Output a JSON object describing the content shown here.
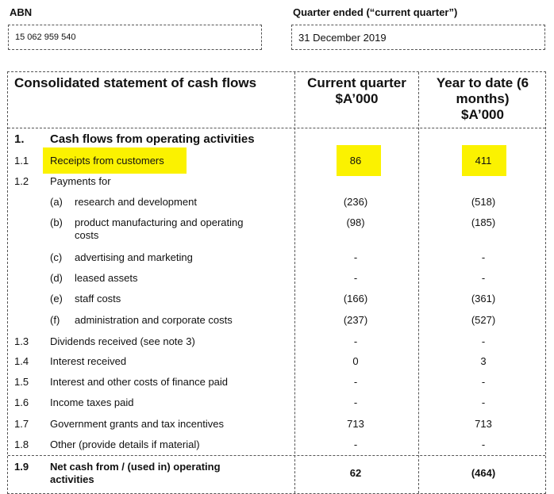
{
  "header": {
    "abn_label": "ABN",
    "abn_value": "15 062 959 540",
    "quarter_label": "Quarter ended (“current quarter”)",
    "quarter_value": "31 December 2019"
  },
  "table": {
    "title": "Consolidated statement of cash flows",
    "col_current": "Current quarter\n$A’000",
    "col_ytd": "Year to date (6\nmonths)\n$A’000",
    "section_num": "1.",
    "section_title": "Cash flows from operating activities",
    "rows": [
      {
        "num": "1.1",
        "label": "Receipts from customers",
        "cq": "86",
        "ytd": "411"
      },
      {
        "num": "1.2",
        "label": "Payments for",
        "cq": "",
        "ytd": ""
      },
      {
        "num": "",
        "sub": "(a)",
        "label": "research and development",
        "cq": "(236)",
        "ytd": "(518)"
      },
      {
        "num": "",
        "sub": "(b)",
        "label": "product manufacturing and operating\ncosts",
        "cq": "(98)",
        "ytd": "(185)"
      },
      {
        "num": "",
        "sub": "(c)",
        "label": "advertising and marketing",
        "cq": "-",
        "ytd": "-"
      },
      {
        "num": "",
        "sub": "(d)",
        "label": "leased assets",
        "cq": "-",
        "ytd": "-"
      },
      {
        "num": "",
        "sub": "(e)",
        "label": "staff costs",
        "cq": "(166)",
        "ytd": "(361)"
      },
      {
        "num": "",
        "sub": "(f)",
        "label": "administration and corporate costs",
        "cq": "(237)",
        "ytd": "(527)"
      },
      {
        "num": "1.3",
        "label": "Dividends received (see note 3)",
        "cq": "-",
        "ytd": "-"
      },
      {
        "num": "1.4",
        "label": "Interest received",
        "cq": "0",
        "ytd": "3"
      },
      {
        "num": "1.5",
        "label": "Interest and other costs of finance paid",
        "cq": "-",
        "ytd": "-"
      },
      {
        "num": "1.6",
        "label": "Income taxes paid",
        "cq": "-",
        "ytd": "-"
      },
      {
        "num": "1.7",
        "label": "Government grants and tax incentives",
        "cq": "713",
        "ytd": "713"
      },
      {
        "num": "1.8",
        "label": "Other (provide details if material)",
        "cq": "-",
        "ytd": "-"
      },
      {
        "num": "1.9",
        "label": "Net cash from / (used in) operating\nactivities",
        "cq": "62",
        "ytd": "(464)"
      }
    ]
  },
  "colors": {
    "highlight": "#fbf200"
  }
}
